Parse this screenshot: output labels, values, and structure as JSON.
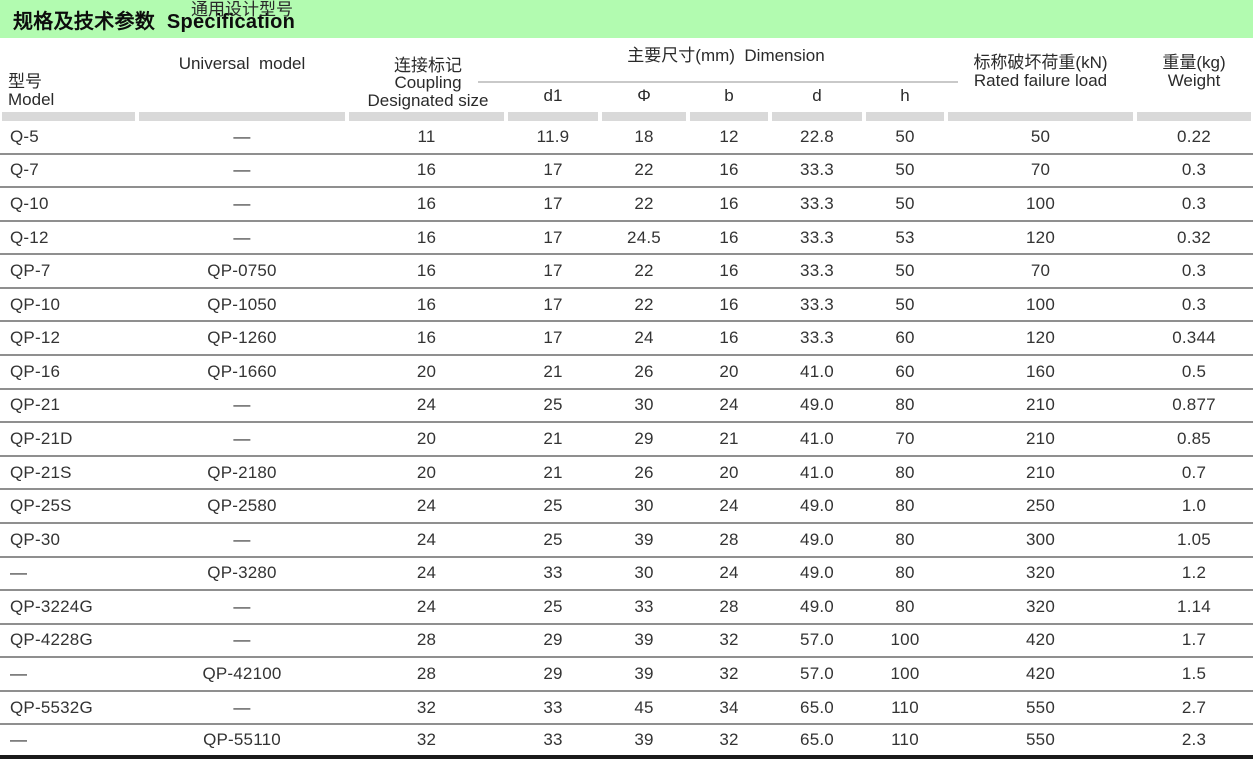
{
  "title": "规格及技术参数  Specification",
  "colors": {
    "title_bar_bg": "#b2fbb0",
    "header_band": "#d9d9d9",
    "row_separator": "#8f8f8f",
    "bottom_rule": "#1a1a1a",
    "text": "#2f2f2f"
  },
  "header": {
    "model_zh": "型号",
    "model_en": "Model",
    "universal_zh": "通用设计型号",
    "universal_en": "Universal  model",
    "coupling_zh": "连接标记",
    "coupling_en1": "Coupling",
    "coupling_en2": "Designated size",
    "dimension": "主要尺寸(mm)  Dimension",
    "dims": [
      "d1",
      "Φ",
      "b",
      "d",
      "h"
    ],
    "load_zh": "标称破坏荷重(kN)",
    "load_en": "Rated failure load",
    "weight_zh": "重量(kg)",
    "weight_en": "Weight"
  },
  "rows": [
    [
      "Q-5",
      "—",
      "11",
      "11.9",
      "18",
      "12",
      "22.8",
      "50",
      "50",
      "0.22"
    ],
    [
      "Q-7",
      "—",
      "16",
      "17",
      "22",
      "16",
      "33.3",
      "50",
      "70",
      "0.3"
    ],
    [
      "Q-10",
      "—",
      "16",
      "17",
      "22",
      "16",
      "33.3",
      "50",
      "100",
      "0.3"
    ],
    [
      "Q-12",
      "—",
      "16",
      "17",
      "24.5",
      "16",
      "33.3",
      "53",
      "120",
      "0.32"
    ],
    [
      "QP-7",
      "QP-0750",
      "16",
      "17",
      "22",
      "16",
      "33.3",
      "50",
      "70",
      "0.3"
    ],
    [
      "QP-10",
      "QP-1050",
      "16",
      "17",
      "22",
      "16",
      "33.3",
      "50",
      "100",
      "0.3"
    ],
    [
      "QP-12",
      "QP-1260",
      "16",
      "17",
      "24",
      "16",
      "33.3",
      "60",
      "120",
      "0.344"
    ],
    [
      "QP-16",
      "QP-1660",
      "20",
      "21",
      "26",
      "20",
      "41.0",
      "60",
      "160",
      "0.5"
    ],
    [
      "QP-21",
      "—",
      "24",
      "25",
      "30",
      "24",
      "49.0",
      "80",
      "210",
      "0.877"
    ],
    [
      "QP-21D",
      "—",
      "20",
      "21",
      "29",
      "21",
      "41.0",
      "70",
      "210",
      "0.85"
    ],
    [
      "QP-21S",
      "QP-2180",
      "20",
      "21",
      "26",
      "20",
      "41.0",
      "80",
      "210",
      "0.7"
    ],
    [
      "QP-25S",
      "QP-2580",
      "24",
      "25",
      "30",
      "24",
      "49.0",
      "80",
      "250",
      "1.0"
    ],
    [
      "QP-30",
      "—",
      "24",
      "25",
      "39",
      "28",
      "49.0",
      "80",
      "300",
      "1.05"
    ],
    [
      "—",
      "QP-3280",
      "24",
      "33",
      "30",
      "24",
      "49.0",
      "80",
      "320",
      "1.2"
    ],
    [
      "QP-3224G",
      "—",
      "24",
      "25",
      "33",
      "28",
      "49.0",
      "80",
      "320",
      "1.14"
    ],
    [
      "QP-4228G",
      "—",
      "28",
      "29",
      "39",
      "32",
      "57.0",
      "100",
      "420",
      "1.7"
    ],
    [
      "—",
      "QP-42100",
      "28",
      "29",
      "39",
      "32",
      "57.0",
      "100",
      "420",
      "1.5"
    ],
    [
      "QP-5532G",
      "—",
      "32",
      "33",
      "45",
      "34",
      "65.0",
      "110",
      "550",
      "2.7"
    ],
    [
      "—",
      "QP-55110",
      "32",
      "33",
      "39",
      "32",
      "65.0",
      "110",
      "550",
      "2.3"
    ]
  ]
}
